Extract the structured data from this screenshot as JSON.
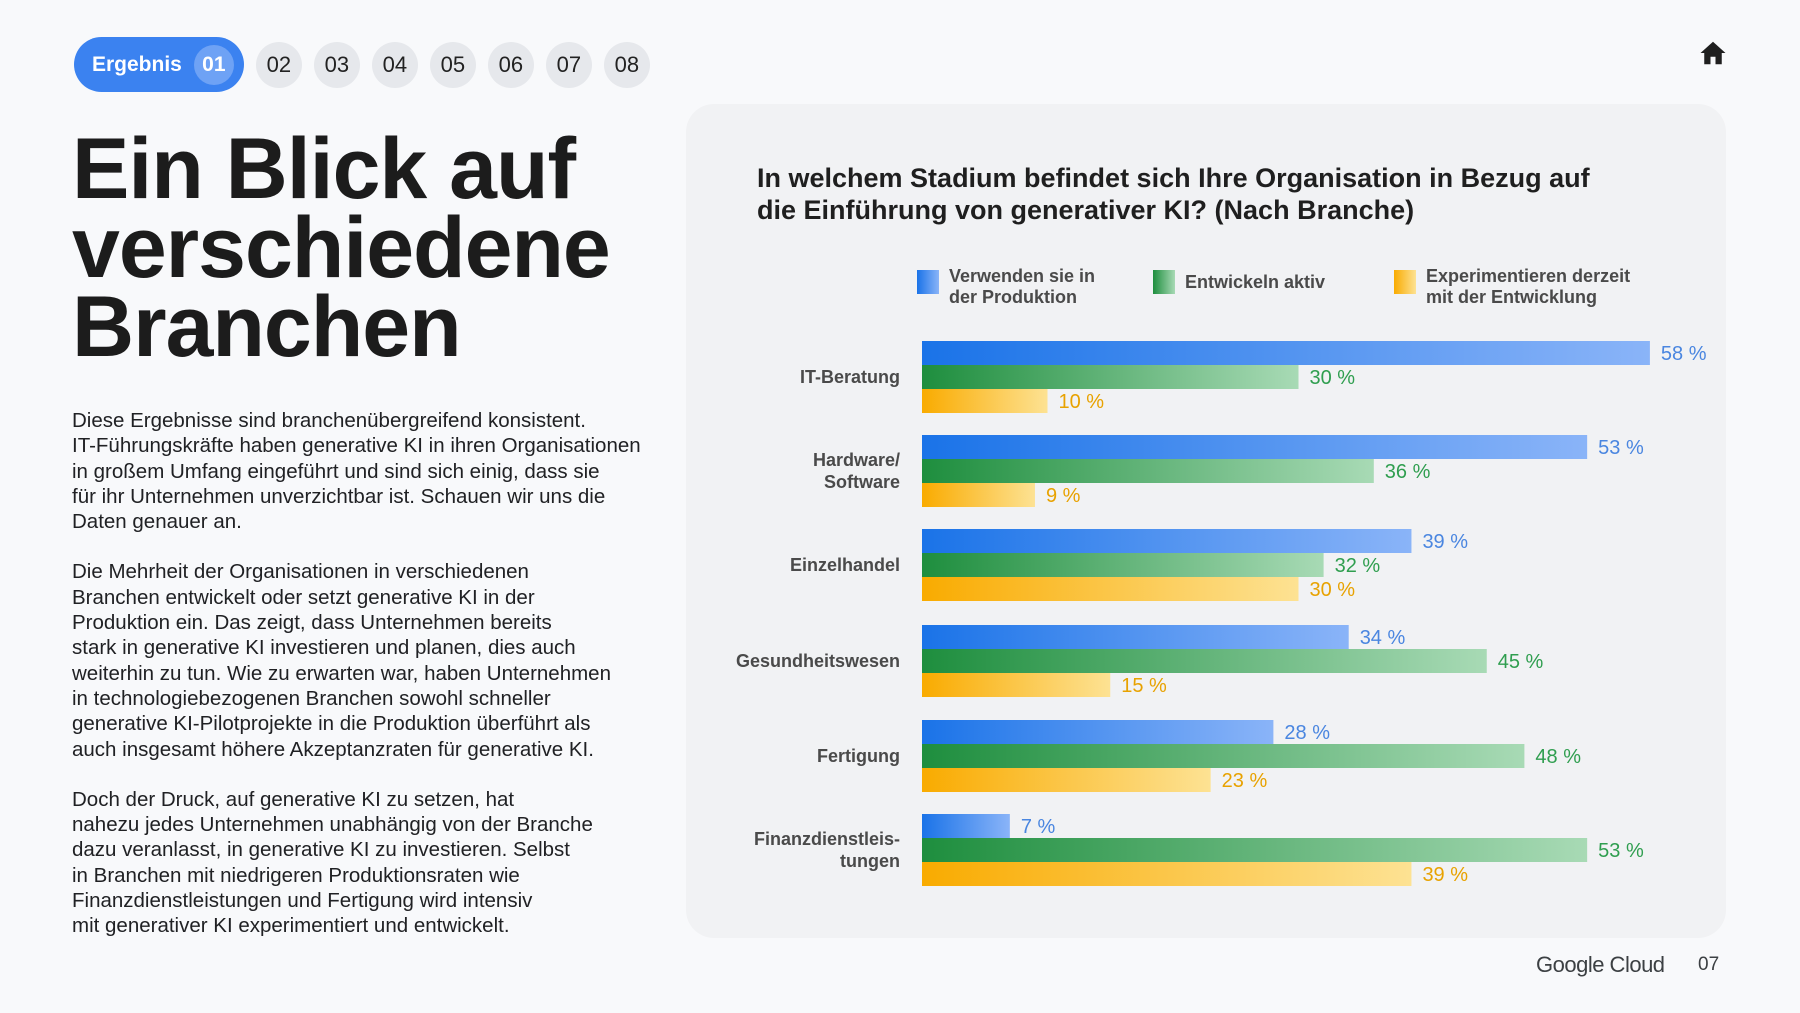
{
  "nav": {
    "label": "Ergebnis",
    "active": "01",
    "pages": [
      "02",
      "03",
      "04",
      "05",
      "06",
      "07",
      "08"
    ]
  },
  "headline": "Ein Blick auf\nverschiedene\nBranchen",
  "paragraphs": [
    "Diese Ergebnisse sind branchenübergreifend konsistent.\nIT-Führungskräfte haben generative KI in ihren Organisationen\nin großem Umfang eingeführt und sind sich einig, dass sie\nfür ihr Unternehmen unverzichtbar ist. Schauen wir uns die\nDaten genauer an.",
    "Die Mehrheit der Organisationen in verschiedenen\nBranchen entwickelt oder setzt generative KI in der\nProduktion ein. Das zeigt, dass Unternehmen bereits\nstark in generative KI investieren und planen, dies auch\nweiterhin zu tun. Wie zu erwarten war, haben Unternehmen\nin technologiebezogenen Branchen sowohl schneller\ngenerative KI-Pilotprojekte in die Produktion überführt als\nauch insgesamt höhere Akzeptanzraten für generative KI.",
    "Doch der Druck, auf generative KI zu setzen, hat\nnahezu jedes Unternehmen unabhängig von der Branche\ndazu veranlasst, in generative KI zu investieren. Selbst\nin Branchen mit niedrigeren Produktionsraten wie\nFinanzdienstleistungen und Fertigung wird intensiv\nmit generativer KI experimentiert und entwickelt."
  ],
  "footer": {
    "logo": "Google Cloud",
    "page": "07"
  },
  "colors": {
    "accent": "#3b82f0",
    "blue": "#1a73e8",
    "green": "#1e8e3e",
    "yellow": "#f9ab00"
  },
  "chart_data": {
    "type": "bar",
    "orientation": "horizontal",
    "title": "In welchem Stadium befindet sich Ihre Organisation in Bezug auf\ndie Einführung von generativer KI? (Nach Branche)",
    "categories": [
      "IT-Beratung",
      "Hardware/\nSoftware",
      "Einzelhandel",
      "Gesundheitswesen",
      "Fertigung",
      "Finanzdienstleis-\ntungen"
    ],
    "series": [
      {
        "name": "Verwenden sie in\nder Produktion",
        "values": [
          58,
          53,
          39,
          34,
          28,
          7
        ],
        "color": "#1a73e8",
        "light": "#8ab4f8",
        "label_color": "#4a86e0"
      },
      {
        "name": "Entwickeln aktiv",
        "values": [
          30,
          36,
          32,
          45,
          48,
          53
        ],
        "color": "#1e8e3e",
        "light": "#a8dab5",
        "label_color": "#2f9e4f"
      },
      {
        "name": "Experimentieren derzeit\nmit der Entwicklung",
        "values": [
          10,
          9,
          30,
          15,
          23,
          39
        ],
        "color": "#f9ab00",
        "light": "#fde293",
        "label_color": "#e8a200"
      }
    ],
    "value_suffix": " %",
    "xlim": [
      0,
      58
    ],
    "legend_position": "top",
    "grid": false
  }
}
